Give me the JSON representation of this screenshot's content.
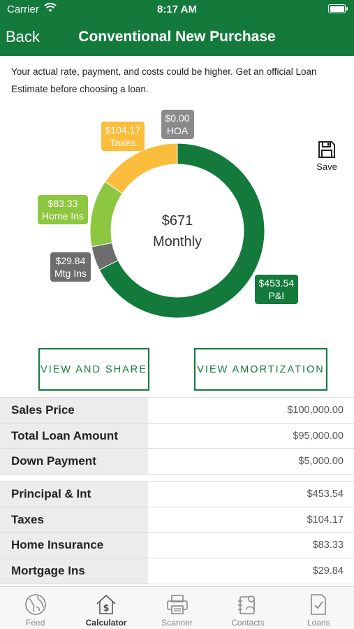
{
  "status_bar": {
    "carrier": "Carrier",
    "time": "8:17 AM"
  },
  "nav": {
    "back_label": "Back",
    "title": "Conventional New Purchase"
  },
  "disclaimer": "Your actual rate, payment, and costs could be higher. Get an official Loan Estimate before choosing a loan.",
  "chart_data": {
    "type": "pie",
    "center_value": "$671",
    "center_label": "Monthly",
    "slices": [
      {
        "name": "P&I",
        "value": 453.54,
        "label": "$453.54",
        "color": "#137a3b"
      },
      {
        "name": "Mtg Ins",
        "value": 29.84,
        "label": "$29.84",
        "color": "#6d6d6d"
      },
      {
        "name": "Home Ins",
        "value": 83.33,
        "label": "$83.33",
        "color": "#8dc63f"
      },
      {
        "name": "Taxes",
        "value": 104.17,
        "label": "$104.17",
        "color": "#fbbd3c"
      },
      {
        "name": "HOA",
        "value": 0.0,
        "label": "$0.00",
        "color": "#8a8a8a"
      }
    ]
  },
  "save_label": "Save",
  "buttons": {
    "view_share": "VIEW AND SHARE",
    "view_amortization": "VIEW AMORTIZATION"
  },
  "loan_summary": [
    {
      "label": "Sales Price",
      "value": "$100,000.00"
    },
    {
      "label": "Total Loan Amount",
      "value": "$95,000.00"
    },
    {
      "label": "Down Payment",
      "value": "$5,000.00"
    }
  ],
  "payment_breakdown": [
    {
      "label": "Principal & Int",
      "value": "$453.54"
    },
    {
      "label": "Taxes",
      "value": "$104.17"
    },
    {
      "label": "Home Insurance",
      "value": "$83.33"
    },
    {
      "label": "Mortgage Ins",
      "value": "$29.84"
    }
  ],
  "tabs": [
    {
      "label": "Feed",
      "icon": "globe-icon"
    },
    {
      "label": "Calculator",
      "icon": "house-dollar-icon",
      "active": true
    },
    {
      "label": "Scanner",
      "icon": "printer-icon"
    },
    {
      "label": "Contacts",
      "icon": "contacts-icon"
    },
    {
      "label": "Loans",
      "icon": "document-check-icon"
    }
  ]
}
